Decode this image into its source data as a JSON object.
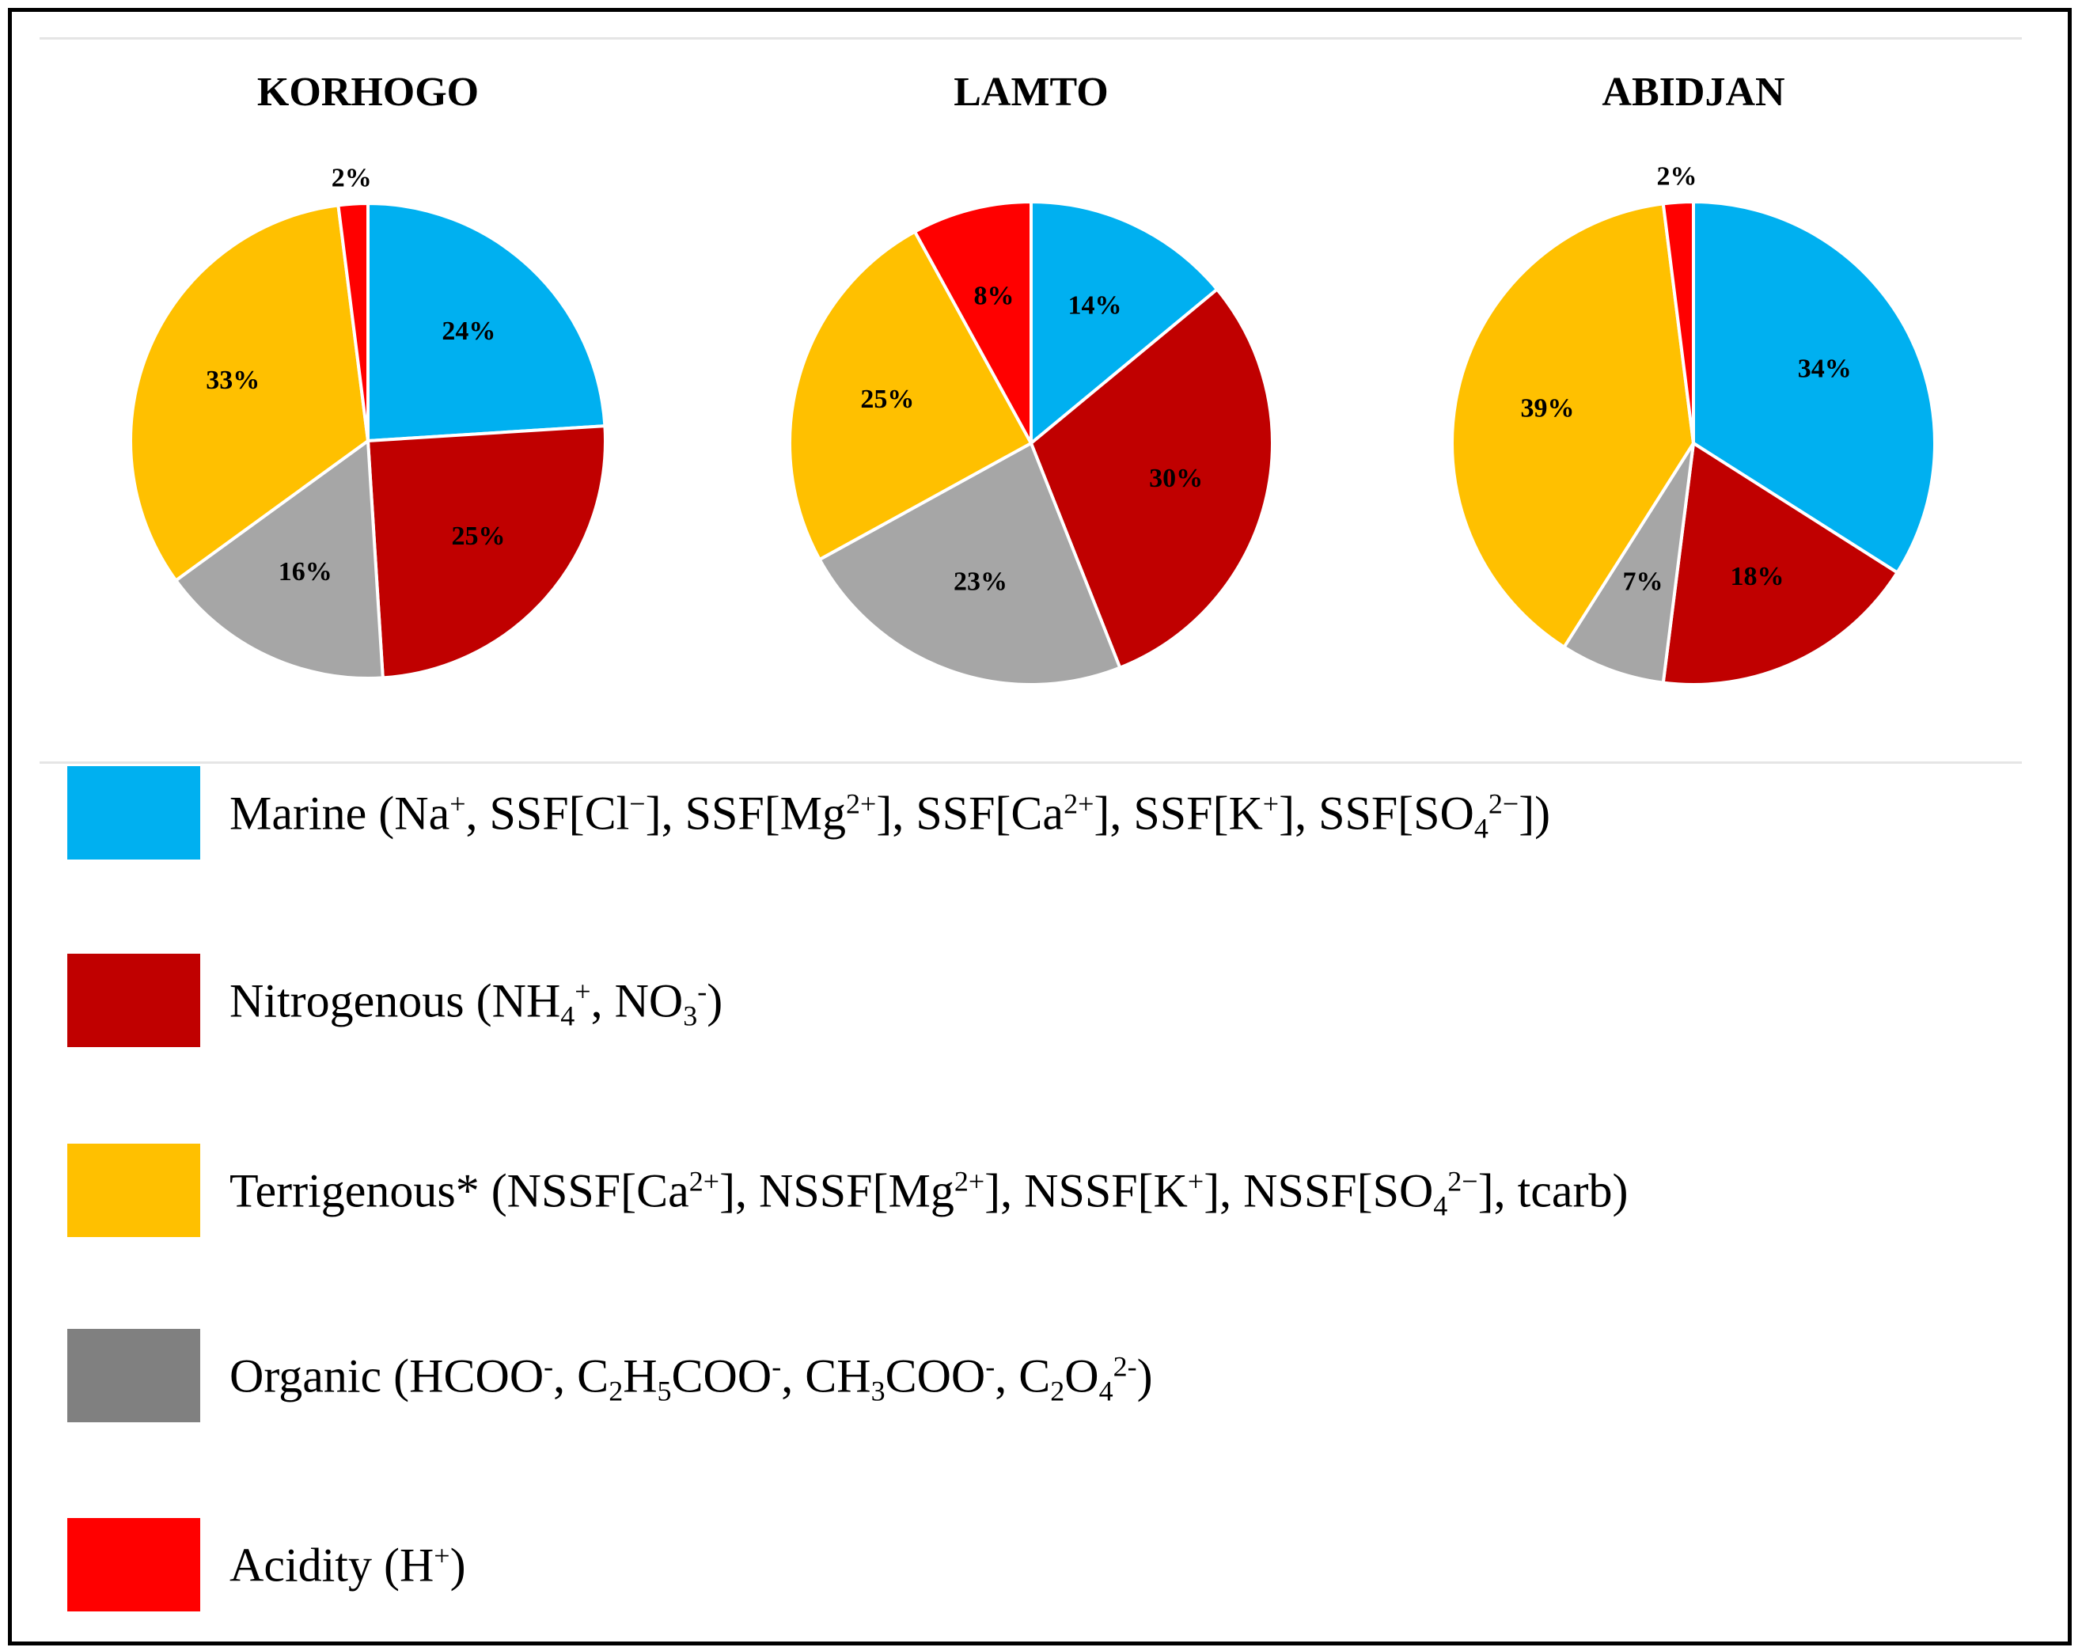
{
  "colors": {
    "Marine": "#00b0f0",
    "Nitrogenous": "#c00000",
    "Terrigenous": "#ffc000",
    "Organic": "#a6a6a6",
    "Acidity": "#ff0000"
  },
  "chart_data": [
    {
      "type": "pie",
      "title": "KORHOGO",
      "categories": [
        "Marine",
        "Nitrogenous",
        "Organic",
        "Terrigenous",
        "Acidity"
      ],
      "values": [
        24,
        25,
        16,
        33,
        2
      ],
      "labels": [
        "24%",
        "25%",
        "16%",
        "33%",
        "2%"
      ]
    },
    {
      "type": "pie",
      "title": "LAMTO",
      "categories": [
        "Marine",
        "Nitrogenous",
        "Organic",
        "Terrigenous",
        "Acidity"
      ],
      "values": [
        14,
        30,
        23,
        25,
        8
      ],
      "labels": [
        "14%",
        "30%",
        "23%",
        "25%",
        "8%"
      ]
    },
    {
      "type": "pie",
      "title": "ABIDJAN",
      "categories": [
        "Marine",
        "Nitrogenous",
        "Organic",
        "Terrigenous",
        "Acidity"
      ],
      "values": [
        34,
        18,
        7,
        39,
        2
      ],
      "labels": [
        "34%",
        "18%",
        "7%",
        "39%",
        "2%"
      ]
    }
  ],
  "legend": [
    {
      "key": "Marine",
      "swatch_color": "#00b0f0",
      "text_parts": [
        {
          "t": "Marine (Na"
        },
        {
          "t": "+",
          "s": "sup"
        },
        {
          "t": ", SSF[Cl"
        },
        {
          "t": "−",
          "s": "sup"
        },
        {
          "t": "], SSF[Mg"
        },
        {
          "t": "2+",
          "s": "sup"
        },
        {
          "t": "], SSF[Ca"
        },
        {
          "t": "2+",
          "s": "sup"
        },
        {
          "t": "], SSF[K"
        },
        {
          "t": "+",
          "s": "sup"
        },
        {
          "t": "], SSF[SO"
        },
        {
          "t": "4",
          "s": "sub"
        },
        {
          "t": "2−",
          "s": "sup"
        },
        {
          "t": "])"
        }
      ]
    },
    {
      "key": "Nitrogenous",
      "swatch_color": "#c00000",
      "text_parts": [
        {
          "t": "Nitrogenous (NH"
        },
        {
          "t": "4",
          "s": "sub"
        },
        {
          "t": "+",
          "s": "sup"
        },
        {
          "t": ", NO"
        },
        {
          "t": "3",
          "s": "sub"
        },
        {
          "t": "-",
          "s": "sup"
        },
        {
          "t": ")"
        }
      ]
    },
    {
      "key": "Terrigenous",
      "swatch_color": "#ffc000",
      "text_parts": [
        {
          "t": "Terrigenous* (NSSF[Ca"
        },
        {
          "t": "2+",
          "s": "sup"
        },
        {
          "t": "], NSSF[Mg"
        },
        {
          "t": "2+",
          "s": "sup"
        },
        {
          "t": "], NSSF[K"
        },
        {
          "t": "+",
          "s": "sup"
        },
        {
          "t": "], NSSF[SO"
        },
        {
          "t": "4",
          "s": "sub"
        },
        {
          "t": "2−",
          "s": "sup"
        },
        {
          "t": "], tcarb)"
        }
      ]
    },
    {
      "key": "Organic",
      "swatch_color": "#808080",
      "text_parts": [
        {
          "t": "Organic (HCOO"
        },
        {
          "t": "-",
          "s": "sup"
        },
        {
          "t": ", C"
        },
        {
          "t": "2",
          "s": "sub"
        },
        {
          "t": "H"
        },
        {
          "t": "5",
          "s": "sub"
        },
        {
          "t": "COO"
        },
        {
          "t": "-",
          "s": "sup"
        },
        {
          "t": ", CH"
        },
        {
          "t": "3",
          "s": "sub"
        },
        {
          "t": "COO"
        },
        {
          "t": "-",
          "s": "sup"
        },
        {
          "t": ", C"
        },
        {
          "t": "2",
          "s": "sub"
        },
        {
          "t": "O"
        },
        {
          "t": "4",
          "s": "sub"
        },
        {
          "t": "2-",
          "s": "sup"
        },
        {
          "t": ")"
        }
      ]
    },
    {
      "key": "Acidity",
      "swatch_color": "#ff0000",
      "text_parts": [
        {
          "t": "Acidity (H"
        },
        {
          "t": "+",
          "s": "sup"
        },
        {
          "t": ")"
        }
      ]
    }
  ]
}
